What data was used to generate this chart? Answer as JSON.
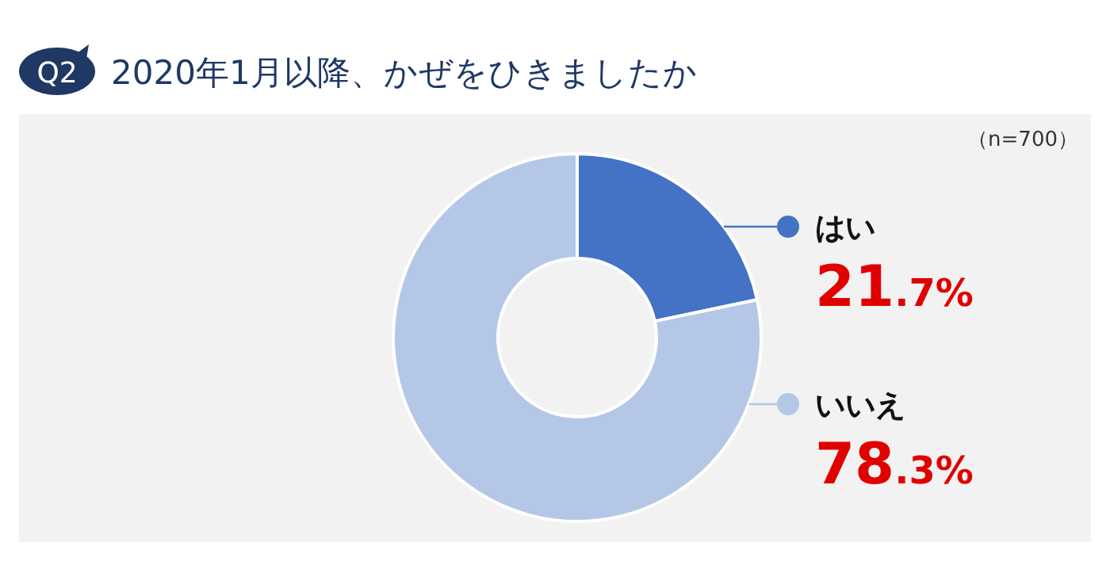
{
  "chart_data": {
    "type": "donut",
    "title": "2020年1月以降、かぜをひきましたか",
    "annotations": [
      "Q2",
      "（n=700）"
    ],
    "categories": [
      "はい",
      "いいえ"
    ],
    "values": [
      21.7,
      78.3
    ],
    "value_labels": [
      "21.7%",
      "78.3%"
    ],
    "colors": [
      "#4472c4",
      "#b4c7e7"
    ],
    "legend": "right"
  }
}
